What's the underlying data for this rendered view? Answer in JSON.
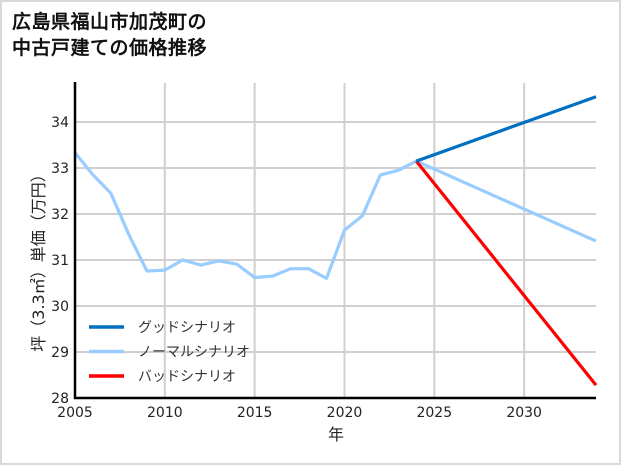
{
  "title_line1": "広島県福山市加茂町の",
  "title_line2": "中古戸建ての価格推移",
  "chart_data": {
    "type": "line",
    "title": "広島県福山市加茂町の中古戸建ての価格推移",
    "xlabel": "年",
    "ylabel": "坪（3.3㎡）単価（万円）",
    "xlim": [
      2005,
      2034
    ],
    "ylim": [
      28,
      34.8
    ],
    "x_ticks": [
      2005,
      2010,
      2015,
      2020,
      2025,
      2030
    ],
    "y_ticks": [
      28,
      29,
      30,
      31,
      32,
      33,
      34
    ],
    "grid": true,
    "legend_position": "lower left",
    "series": [
      {
        "name": "グッドシナリオ",
        "color": "#0070c0",
        "x": [
          2024,
          2034
        ],
        "values": [
          33.15,
          34.55
        ]
      },
      {
        "name": "ノーマルシナリオ",
        "color": "#99ccff",
        "x": [
          2005,
          2006,
          2007,
          2008,
          2009,
          2010,
          2011,
          2012,
          2013,
          2014,
          2015,
          2016,
          2017,
          2018,
          2019,
          2020,
          2021,
          2022,
          2023,
          2024,
          2034
        ],
        "values": [
          33.33,
          32.85,
          32.45,
          31.55,
          30.76,
          30.78,
          31.0,
          30.89,
          30.98,
          30.91,
          30.62,
          30.65,
          30.81,
          30.81,
          30.6,
          31.65,
          31.96,
          32.85,
          32.95,
          33.15,
          31.41
        ]
      },
      {
        "name": "バッドシナリオ",
        "color": "#ff0000",
        "x": [
          2024,
          2034
        ],
        "values": [
          33.15,
          28.28
        ]
      }
    ]
  }
}
